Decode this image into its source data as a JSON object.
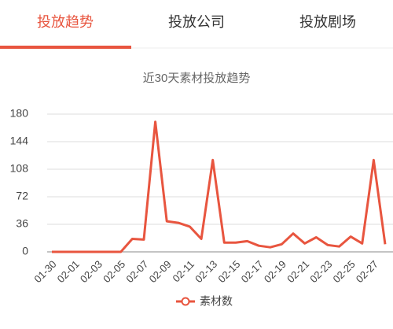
{
  "tabs": [
    {
      "label": "投放趋势",
      "active": true
    },
    {
      "label": "投放公司",
      "active": false
    },
    {
      "label": "投放剧场",
      "active": false
    }
  ],
  "chart_data": {
    "type": "line",
    "title": "近30天素材投放趋势",
    "categories": [
      "01-30",
      null,
      "02-01",
      null,
      "02-03",
      null,
      "02-05",
      null,
      "02-07",
      null,
      "02-09",
      null,
      "02-11",
      null,
      "02-13",
      null,
      "02-15",
      null,
      "02-17",
      null,
      "02-19",
      null,
      "02-21",
      null,
      "02-23",
      null,
      "02-25",
      null,
      "02-27",
      null
    ],
    "series": [
      {
        "name": "素材数",
        "color": "#e8553f",
        "values": [
          0,
          0,
          0,
          0,
          0,
          0,
          0,
          17,
          16,
          170,
          40,
          38,
          33,
          17,
          120,
          12,
          12,
          14,
          8,
          6,
          10,
          24,
          11,
          19,
          9,
          7,
          20,
          11,
          120,
          10
        ]
      }
    ],
    "ylim": [
      0,
      180
    ],
    "yticks": [
      0,
      36,
      72,
      108,
      144,
      180
    ],
    "grid": true
  }
}
